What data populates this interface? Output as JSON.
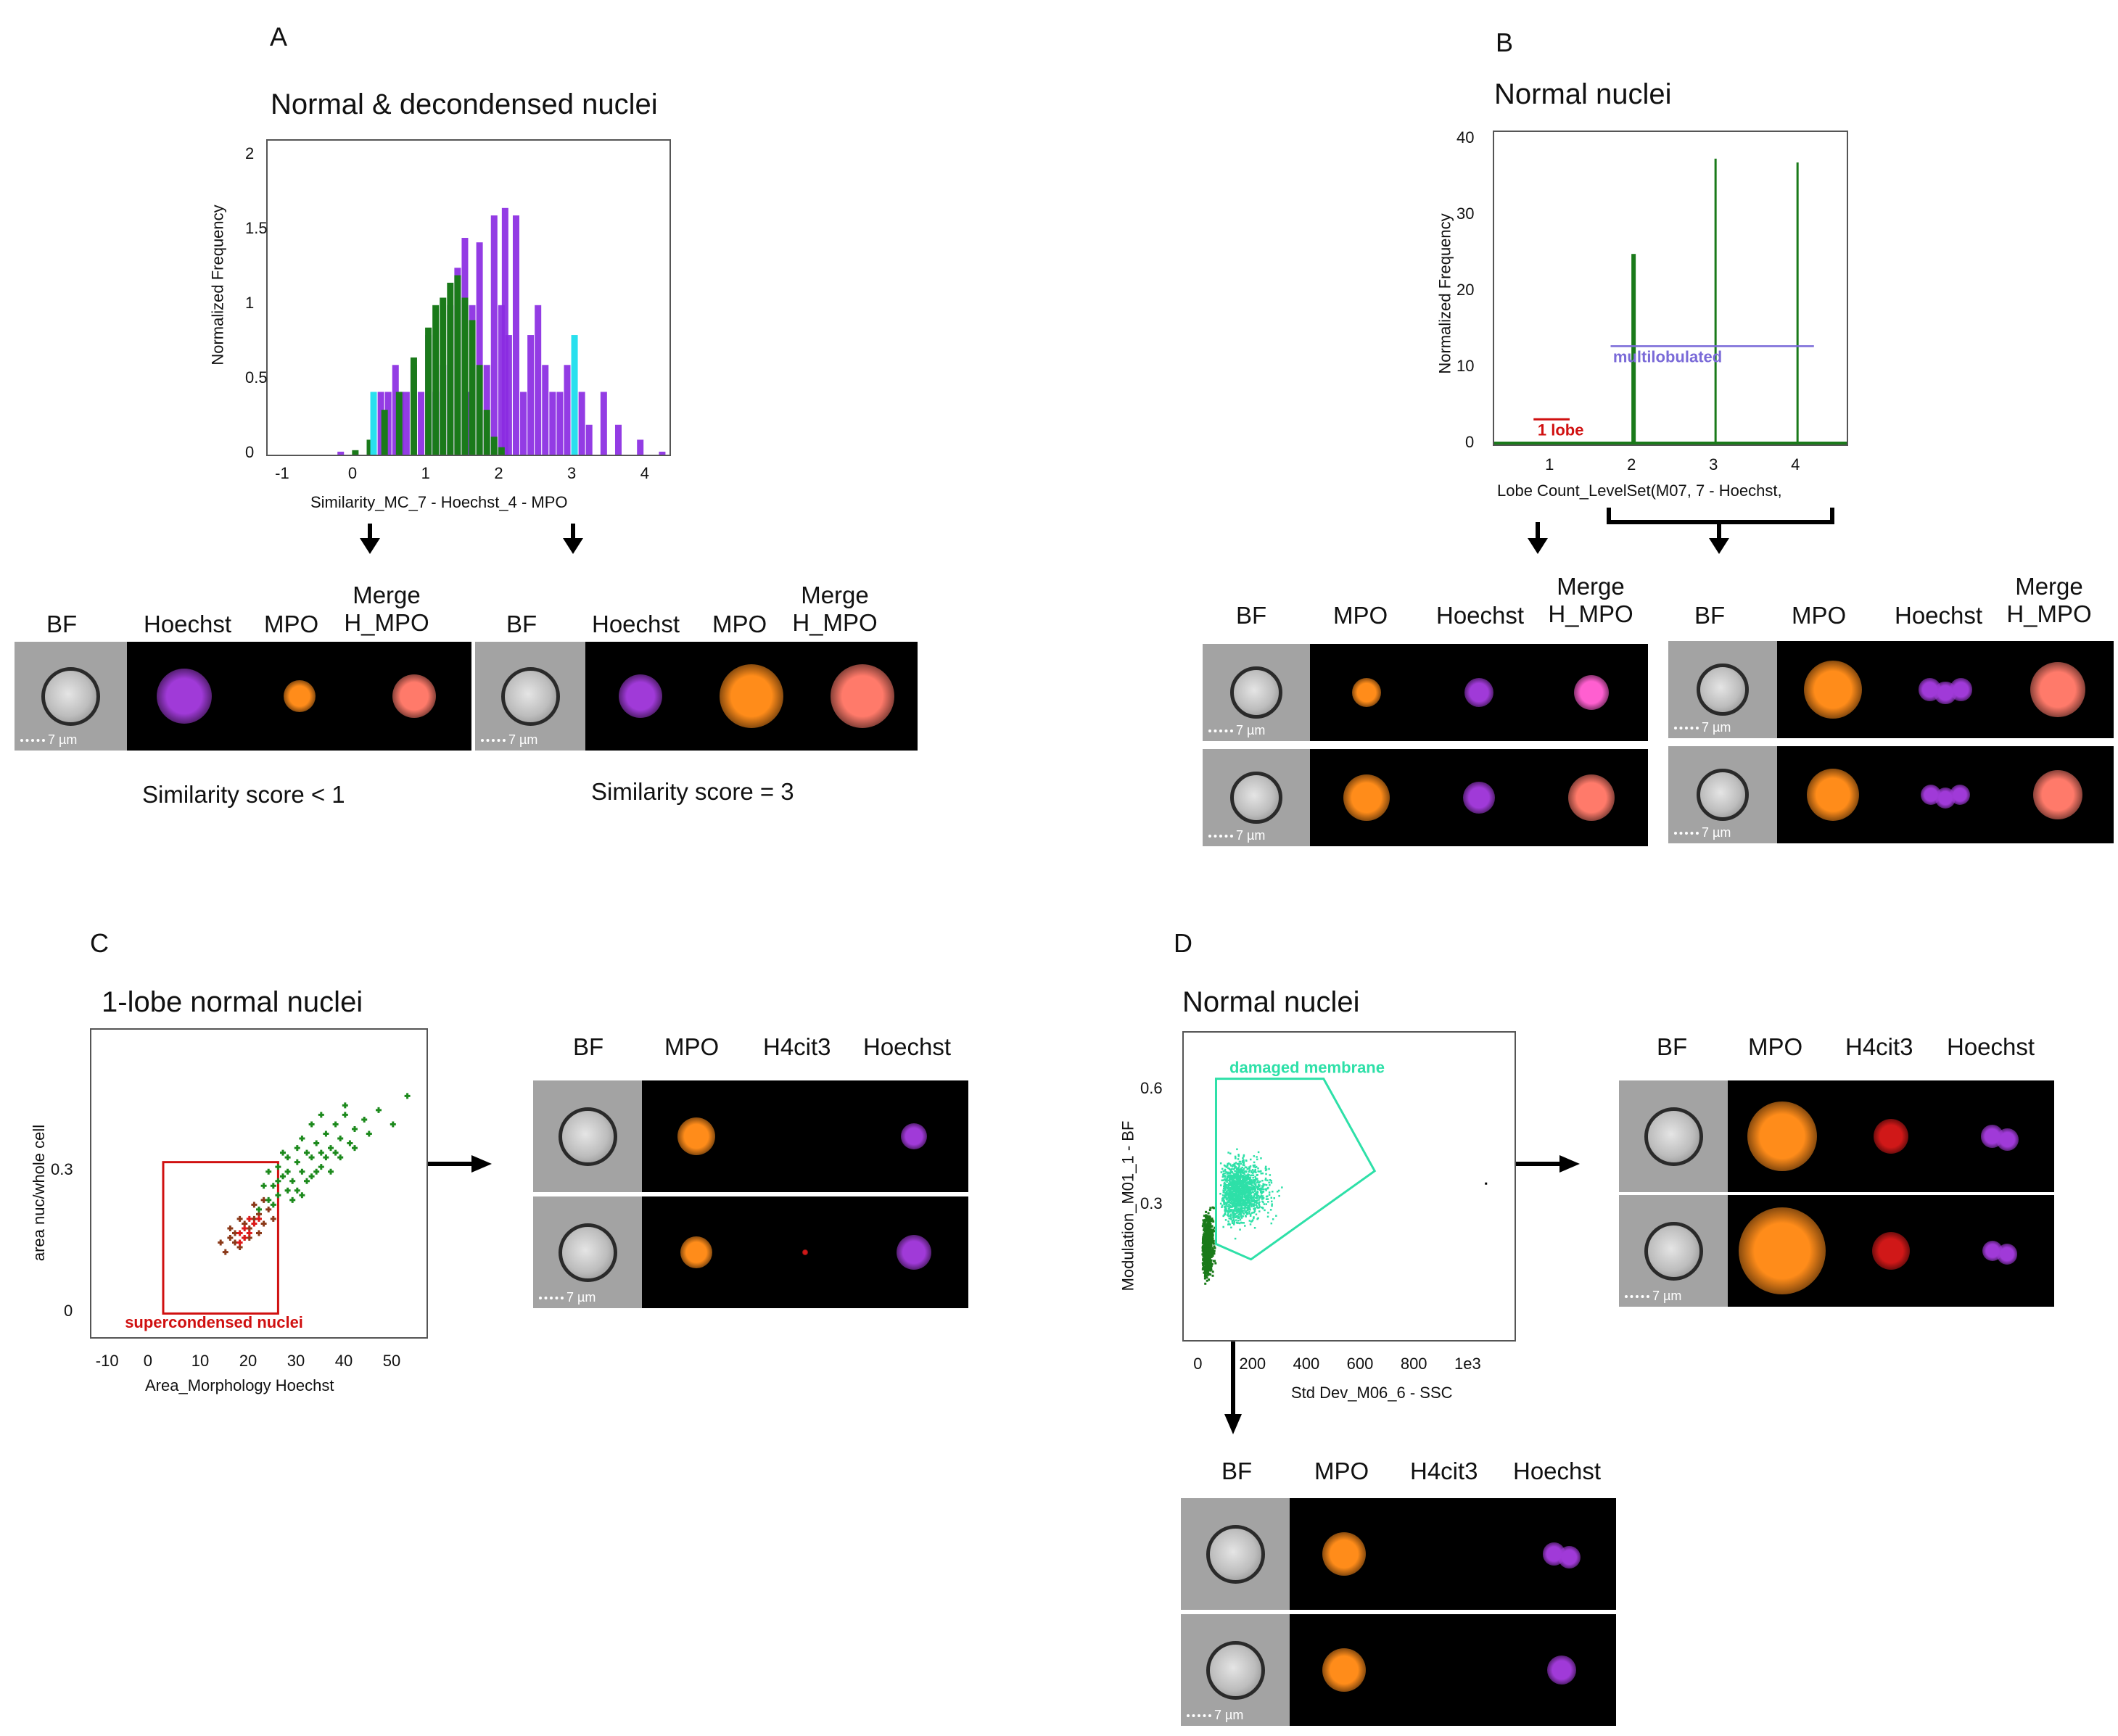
{
  "panels": {
    "A": {
      "letter": "A",
      "title": "Normal & decondensed nuclei",
      "chart": {
        "type": "bar",
        "xlabel": "Similarity_MC_7 - Hoechst_4 - MPO",
        "ylabel": "Normalized Frequency",
        "xlim": [
          -1.2,
          4.3
        ],
        "ylim": [
          0,
          2.1
        ],
        "xticks": [
          "-1",
          "0",
          "1",
          "2",
          "3",
          "4"
        ],
        "yticks": [
          "0",
          "0.5",
          "1",
          "1.5",
          "2"
        ],
        "series": [
          {
            "color": "#8a2be2",
            "values": [
              [
                -0.2,
                0.02
              ],
              [
                0.2,
                0.08
              ],
              [
                0.35,
                0.42
              ],
              [
                0.45,
                0.42
              ],
              [
                0.55,
                0.6
              ],
              [
                0.62,
                0.42
              ],
              [
                0.7,
                0.42
              ],
              [
                0.8,
                0.6
              ],
              [
                0.9,
                0.42
              ],
              [
                1.0,
                0.8
              ],
              [
                1.1,
                0.42
              ],
              [
                1.2,
                0.6
              ],
              [
                1.3,
                1.0
              ],
              [
                1.4,
                1.25
              ],
              [
                1.5,
                1.45
              ],
              [
                1.55,
                0.42
              ],
              [
                1.6,
                1.0
              ],
              [
                1.7,
                1.42
              ],
              [
                1.8,
                0.6
              ],
              [
                1.9,
                1.6
              ],
              [
                2.0,
                1.0
              ],
              [
                2.05,
                1.65
              ],
              [
                2.1,
                0.8
              ],
              [
                2.2,
                1.6
              ],
              [
                2.3,
                0.42
              ],
              [
                2.4,
                0.8
              ],
              [
                2.5,
                1.0
              ],
              [
                2.6,
                0.6
              ],
              [
                2.7,
                0.42
              ],
              [
                2.8,
                0.42
              ],
              [
                2.9,
                0.6
              ],
              [
                3.1,
                0.42
              ],
              [
                3.2,
                0.2
              ],
              [
                3.4,
                0.42
              ],
              [
                3.6,
                0.2
              ],
              [
                3.9,
                0.1
              ],
              [
                4.2,
                0.02
              ]
            ]
          },
          {
            "color": "#1a7a1a",
            "values": [
              [
                0.0,
                0.03
              ],
              [
                0.2,
                0.1
              ],
              [
                0.4,
                0.3
              ],
              [
                0.6,
                0.42
              ],
              [
                0.8,
                0.65
              ],
              [
                1.0,
                0.85
              ],
              [
                1.1,
                1.0
              ],
              [
                1.2,
                1.05
              ],
              [
                1.3,
                1.15
              ],
              [
                1.4,
                1.2
              ],
              [
                1.5,
                1.05
              ],
              [
                1.6,
                0.9
              ],
              [
                1.7,
                0.6
              ],
              [
                1.8,
                0.3
              ],
              [
                1.9,
                0.12
              ],
              [
                2.0,
                0.05
              ]
            ]
          },
          {
            "color": "#29e0ee",
            "values": [
              [
                0.25,
                0.42
              ],
              [
                3.0,
                0.8
              ]
            ]
          }
        ]
      },
      "groups": [
        {
          "headers": [
            "BF",
            "Hoechst",
            "MPO",
            "Merge H_MPO"
          ],
          "scale": "7 µm",
          "caption": "Similarity score <  1"
        },
        {
          "headers": [
            "BF",
            "Hoechst",
            "MPO",
            "Merge H_MPO"
          ],
          "scale": "7 µm",
          "caption": "Similarity score =  3"
        }
      ]
    },
    "B": {
      "letter": "B",
      "title": "Normal  nuclei",
      "chart": {
        "type": "bar",
        "xlabel": "Lobe Count_LevelSet(M07, 7 - Hoechst,",
        "ylabel": "Normalized Frequency",
        "xlim": [
          0.3,
          4.6
        ],
        "ylim": [
          0,
          41
        ],
        "xticks": [
          "1",
          "2",
          "3",
          "4"
        ],
        "yticks": [
          "0",
          "10",
          "20",
          "30",
          "40"
        ],
        "bars": [
          {
            "x": 1,
            "y": 0.3
          },
          {
            "x": 2,
            "y": 25
          },
          {
            "x": 3,
            "y": 37.5
          },
          {
            "x": 4,
            "y": 37
          }
        ],
        "gates": [
          {
            "label": "1 lobe",
            "color": "#d01010"
          },
          {
            "label": "multilobulated",
            "color": "#7a6ad8"
          }
        ]
      },
      "groups": [
        {
          "headers": [
            "BF",
            "MPO",
            "Hoechst",
            "Merge H_MPO"
          ],
          "scale": "7 µm"
        },
        {
          "headers": [
            "BF",
            "MPO",
            "Hoechst",
            "Merge H_MPO"
          ],
          "scale": "7 µm"
        }
      ]
    },
    "C": {
      "letter": "C",
      "title": "1-lobe normal  nuclei",
      "chart": {
        "type": "scatter",
        "xlabel": "Area_Morphology Hoechst",
        "ylabel": "area nuc/whole cell",
        "xlim": [
          -13,
          57
        ],
        "ylim": [
          -0.05,
          0.6
        ],
        "xticks": [
          "-10",
          "0",
          "10",
          "20",
          "30",
          "40",
          "50"
        ],
        "yticks": [
          "0",
          "0.3"
        ],
        "gate": {
          "label": "supercondensed nuclei",
          "color": "#d01010"
        },
        "series": [
          {
            "color": "#8b3a1a",
            "points": [
              [
                14,
                0.15
              ],
              [
                15,
                0.13
              ],
              [
                16,
                0.16
              ],
              [
                17,
                0.17
              ],
              [
                18,
                0.14
              ],
              [
                19,
                0.19
              ],
              [
                20,
                0.18
              ],
              [
                21,
                0.2
              ],
              [
                22,
                0.21
              ],
              [
                23,
                0.19
              ],
              [
                16,
                0.18
              ],
              [
                18,
                0.2
              ],
              [
                20,
                0.16
              ],
              [
                22,
                0.17
              ],
              [
                24,
                0.22
              ],
              [
                17,
                0.15
              ],
              [
                19,
                0.16
              ],
              [
                21,
                0.23
              ],
              [
                23,
                0.24
              ],
              [
                25,
                0.2
              ]
            ]
          },
          {
            "color": "#dd1a1a",
            "points": [
              [
                18,
                0.17
              ],
              [
                19,
                0.18
              ],
              [
                20,
                0.17
              ],
              [
                21,
                0.19
              ],
              [
                19,
                0.16
              ],
              [
                22,
                0.2
              ],
              [
                20,
                0.2
              ],
              [
                18,
                0.15
              ]
            ]
          },
          {
            "color": "#1d8a1d",
            "points": [
              [
                22,
                0.22
              ],
              [
                24,
                0.24
              ],
              [
                25,
                0.27
              ],
              [
                26,
                0.25
              ],
              [
                27,
                0.29
              ],
              [
                28,
                0.3
              ],
              [
                29,
                0.28
              ],
              [
                30,
                0.32
              ],
              [
                31,
                0.3
              ],
              [
                32,
                0.34
              ],
              [
                33,
                0.33
              ],
              [
                34,
                0.36
              ],
              [
                35,
                0.31
              ],
              [
                36,
                0.38
              ],
              [
                37,
                0.35
              ],
              [
                38,
                0.4
              ],
              [
                39,
                0.37
              ],
              [
                40,
                0.42
              ],
              [
                41,
                0.36
              ],
              [
                42,
                0.39
              ],
              [
                44,
                0.41
              ],
              [
                47,
                0.43
              ],
              [
                50,
                0.4
              ],
              [
                53,
                0.46
              ],
              [
                26,
                0.31
              ],
              [
                28,
                0.26
              ],
              [
                30,
                0.35
              ],
              [
                32,
                0.28
              ],
              [
                34,
                0.3
              ],
              [
                36,
                0.33
              ],
              [
                38,
                0.34
              ],
              [
                24,
                0.3
              ],
              [
                27,
                0.34
              ],
              [
                29,
                0.24
              ],
              [
                31,
                0.37
              ],
              [
                33,
                0.4
              ],
              [
                35,
                0.42
              ],
              [
                37,
                0.3
              ],
              [
                25,
                0.23
              ],
              [
                23,
                0.27
              ],
              [
                30,
                0.26
              ],
              [
                33,
                0.29
              ],
              [
                35,
                0.34
              ],
              [
                39,
                0.33
              ],
              [
                42,
                0.35
              ],
              [
                45,
                0.38
              ],
              [
                28,
                0.33
              ],
              [
                31,
                0.25
              ],
              [
                26,
                0.28
              ],
              [
                40,
                0.44
              ]
            ]
          }
        ]
      },
      "group": {
        "headers": [
          "BF",
          "MPO",
          "H4cit3",
          "Hoechst"
        ],
        "scale": "7 µm"
      }
    },
    "D": {
      "letter": "D",
      "title": "Normal  nuclei",
      "chart": {
        "type": "scatter",
        "xlabel": "Std Dev_M06_6 - SSC",
        "ylabel": "Modulation_M01_1 - BF",
        "xlim": [
          -60,
          1170
        ],
        "ylim": [
          -0.05,
          0.75
        ],
        "xticks": [
          "0",
          "200",
          "400",
          "600",
          "800",
          "1e3"
        ],
        "yticks": [
          "0.3",
          "0.6"
        ],
        "gate": {
          "label": "damaged membrane",
          "color": "#2ee0a8"
        },
        "series": [
          {
            "name": "",
            "color": "#1a7a1a",
            "points": []
          },
          {
            "name": "",
            "color": "#2ee0a8",
            "points": []
          }
        ]
      },
      "groups": [
        {
          "headers": [
            "BF",
            "MPO",
            "H4cit3",
            "Hoechst"
          ],
          "scale": "7 µm"
        },
        {
          "headers": [
            "BF",
            "MPO",
            "H4cit3",
            "Hoechst"
          ],
          "scale": "7 µm"
        }
      ]
    }
  }
}
